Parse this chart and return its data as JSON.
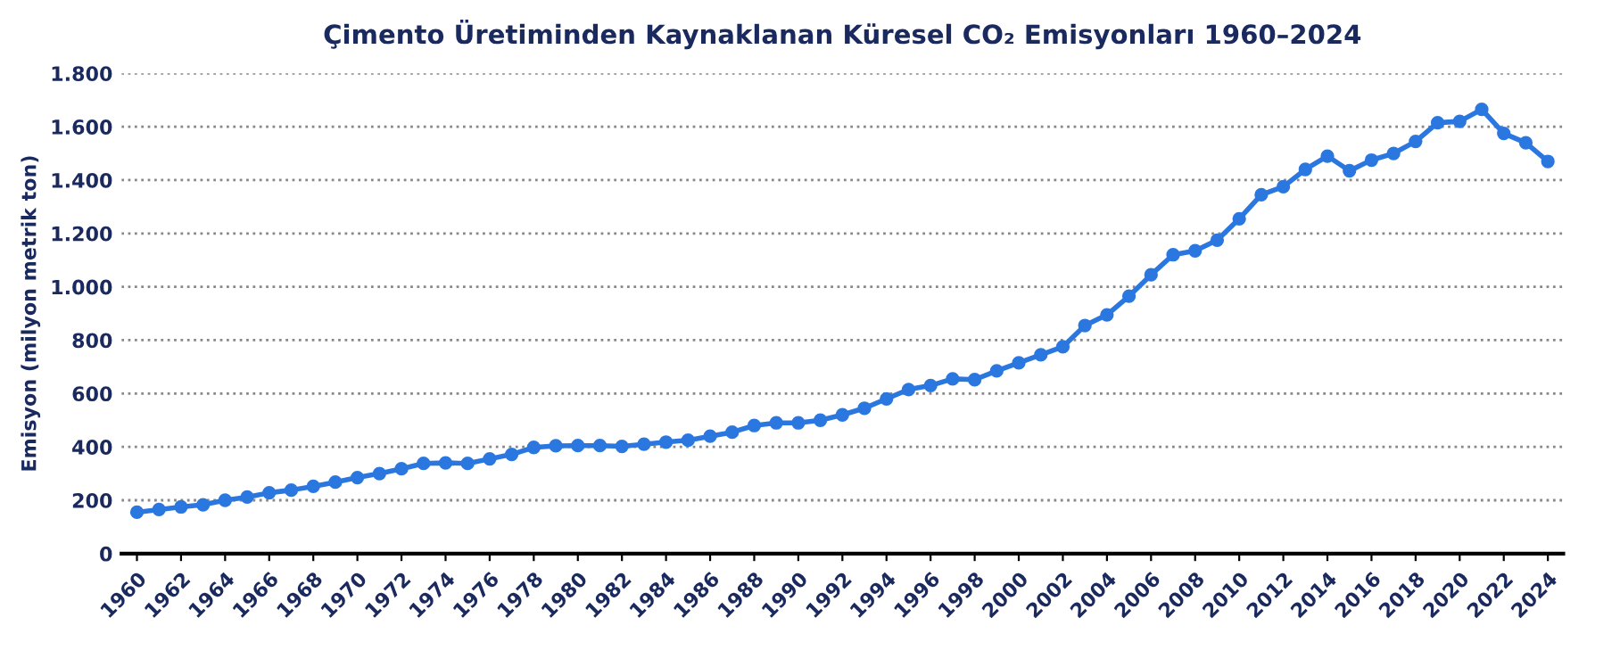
{
  "chart_data": {
    "type": "line",
    "title": "Çimento Üretiminden Kaynaklanan Küresel CO₂ Emisyonları 1960–2024",
    "ylabel": "Emisyon (milyon metrik ton)",
    "x": [
      1960,
      1961,
      1962,
      1963,
      1964,
      1965,
      1966,
      1967,
      1968,
      1969,
      1970,
      1971,
      1972,
      1973,
      1974,
      1975,
      1976,
      1977,
      1978,
      1979,
      1980,
      1981,
      1982,
      1983,
      1984,
      1985,
      1986,
      1987,
      1988,
      1989,
      1990,
      1991,
      1992,
      1993,
      1994,
      1995,
      1996,
      1997,
      1998,
      1999,
      2000,
      2001,
      2002,
      2003,
      2004,
      2005,
      2006,
      2007,
      2008,
      2009,
      2010,
      2011,
      2012,
      2013,
      2014,
      2015,
      2016,
      2017,
      2018,
      2019,
      2020,
      2021,
      2022,
      2023,
      2024
    ],
    "series": [
      {
        "color": "#2b77e0",
        "values": [
          155,
          165,
          175,
          183,
          200,
          212,
          228,
          238,
          252,
          268,
          285,
          300,
          318,
          338,
          340,
          338,
          355,
          372,
          398,
          404,
          405,
          405,
          402,
          410,
          418,
          425,
          440,
          455,
          480,
          490,
          490,
          500,
          520,
          545,
          580,
          615,
          630,
          655,
          652,
          685,
          715,
          745,
          775,
          855,
          895,
          965,
          1045,
          1120,
          1135,
          1175,
          1255,
          1345,
          1375,
          1440,
          1490,
          1435,
          1475,
          1500,
          1545,
          1615,
          1620,
          1665,
          1575,
          1540,
          1470
        ]
      }
    ],
    "xlim": [
      1959.3,
      2024.7
    ],
    "xticks": [
      1960,
      1962,
      1964,
      1966,
      1968,
      1970,
      1972,
      1974,
      1976,
      1978,
      1980,
      1982,
      1984,
      1986,
      1988,
      1990,
      1992,
      1994,
      1996,
      1998,
      2000,
      2002,
      2004,
      2006,
      2008,
      2010,
      2012,
      2014,
      2016,
      2018,
      2020,
      2022,
      2024
    ],
    "ylim": [
      0,
      1800
    ],
    "yticks": [
      0,
      200,
      400,
      600,
      800,
      {
        "value": 1000,
        "label": "1.000"
      },
      {
        "value": 1200,
        "label": "1.200"
      },
      {
        "value": 1400,
        "label": "1.400"
      },
      {
        "value": 1600,
        "label": "1.600"
      },
      {
        "value": 1800,
        "label": "1.800"
      }
    ],
    "grid": "y",
    "marker": "circle",
    "line_style": "solid",
    "legend": false
  }
}
